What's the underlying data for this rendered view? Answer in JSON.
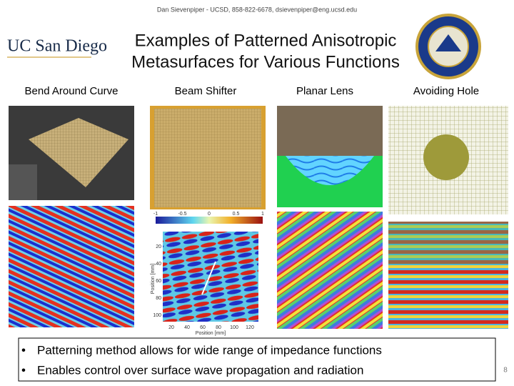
{
  "header": {
    "credit": "Dan Sievenpiper - UCSD, 858-822-6678, dsievenpiper@eng.ucsd.edu"
  },
  "logo": {
    "text": "UC San Diego"
  },
  "title": {
    "lines": [
      "Examples of Patterned Anisotropic",
      "Metasurfaces for Various Functions"
    ]
  },
  "columns": [
    {
      "label": "Bend Around Curve"
    },
    {
      "label": "Beam Shifter"
    },
    {
      "label": "Planar Lens"
    },
    {
      "label": "Avoiding Hole"
    }
  ],
  "plot": {
    "colorbar_ticks": [
      "-1",
      "-0.5",
      "0",
      "0.5",
      "1"
    ],
    "y_ticks": [
      "20",
      "40",
      "60",
      "80",
      "100"
    ],
    "x_ticks": [
      "20",
      "40",
      "60",
      "80",
      "100",
      "120"
    ],
    "axis_label": "Position [mm]"
  },
  "bullets": [
    "Patterning method allows for wide range of impedance functions",
    "Enables control over surface wave propagation and radiation"
  ],
  "page_number": "8"
}
